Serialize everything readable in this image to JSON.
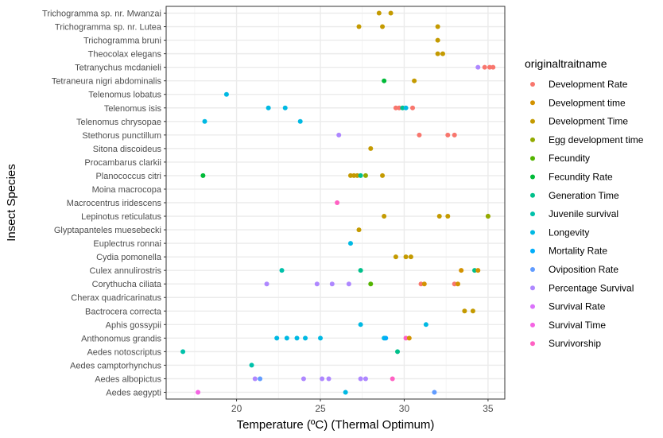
{
  "chart_data": {
    "type": "scatter",
    "xlabel": "Temperature (ºC) (Thermal Optimum)",
    "ylabel": "Insect Species",
    "xlim": [
      15.8,
      36.0
    ],
    "x_ticks": [
      20,
      25,
      30,
      35
    ],
    "grid": true,
    "legend_position": "right",
    "legend": {
      "title": "originaltraitname",
      "entries": [
        {
          "name": "Development Rate",
          "color": "#F8766D"
        },
        {
          "name": "Development time",
          "color": "#D39200"
        },
        {
          "name": "Development Time",
          "color": "#C49A00"
        },
        {
          "name": "Egg development time",
          "color": "#93AA00"
        },
        {
          "name": "Fecundity",
          "color": "#53B400"
        },
        {
          "name": "Fecundity Rate",
          "color": "#00BA38"
        },
        {
          "name": "Generation Time",
          "color": "#00C08B"
        },
        {
          "name": "Juvenile survival",
          "color": "#00C1AA"
        },
        {
          "name": "Longevity",
          "color": "#00B9E3"
        },
        {
          "name": "Mortality Rate",
          "color": "#00ADFA"
        },
        {
          "name": "Oviposition Rate",
          "color": "#619CFF"
        },
        {
          "name": "Percentage Survival",
          "color": "#AE87FF"
        },
        {
          "name": "Survival Rate",
          "color": "#DB72FB"
        },
        {
          "name": "Survival Time",
          "color": "#F564E3"
        },
        {
          "name": "Survivorship",
          "color": "#FF61C3"
        }
      ]
    },
    "categories": [
      "Aedes aegypti",
      "Aedes albopictus",
      "Aedes camptorhynchus",
      "Aedes notoscriptus",
      "Anthonomus grandis",
      "Aphis gossypii",
      "Bactrocera correcta",
      "Cherax quadricarinatus",
      "Corythucha ciliata",
      "Culex annulirostris",
      "Cydia pomonella",
      "Euplectrus ronnai",
      "Glyptapanteles muesebecki",
      "Lepinotus reticulatus",
      "Macrocentrus iridescens",
      "Moina macrocopa",
      "Planococcus citri",
      "Procambarus clarkii",
      "Sitona discoideus",
      "Stethorus punctillum",
      "Telenomus chrysopae",
      "Telenomus isis",
      "Telenomus lobatus",
      "Tetraneura nigri abdominalis",
      "Tetranychus mcdanieli",
      "Theocolax elegans",
      "Trichogramma bruni",
      "Trichogramma sp. nr. Lutea",
      "Trichogramma sp. nr. Mwanzai"
    ],
    "points": [
      {
        "species": "Aedes aegypti",
        "x": 17.7,
        "trait": "Survival Time"
      },
      {
        "species": "Aedes aegypti",
        "x": 26.5,
        "trait": "Longevity"
      },
      {
        "species": "Aedes aegypti",
        "x": 31.8,
        "trait": "Oviposition Rate"
      },
      {
        "species": "Aedes albopictus",
        "x": 21.1,
        "trait": "Percentage Survival"
      },
      {
        "species": "Aedes albopictus",
        "x": 21.4,
        "trait": "Oviposition Rate"
      },
      {
        "species": "Aedes albopictus",
        "x": 24.0,
        "trait": "Percentage Survival"
      },
      {
        "species": "Aedes albopictus",
        "x": 25.1,
        "trait": "Percentage Survival"
      },
      {
        "species": "Aedes albopictus",
        "x": 25.5,
        "trait": "Percentage Survival"
      },
      {
        "species": "Aedes albopictus",
        "x": 27.4,
        "trait": "Percentage Survival"
      },
      {
        "species": "Aedes albopictus",
        "x": 27.7,
        "trait": "Percentage Survival"
      },
      {
        "species": "Aedes albopictus",
        "x": 29.3,
        "trait": "Survivorship"
      },
      {
        "species": "Aedes camptorhynchus",
        "x": 20.9,
        "trait": "Juvenile survival"
      },
      {
        "species": "Aedes notoscriptus",
        "x": 16.8,
        "trait": "Juvenile survival"
      },
      {
        "species": "Aedes notoscriptus",
        "x": 29.6,
        "trait": "Generation Time"
      },
      {
        "species": "Anthonomus grandis",
        "x": 22.4,
        "trait": "Longevity"
      },
      {
        "species": "Anthonomus grandis",
        "x": 23.0,
        "trait": "Longevity"
      },
      {
        "species": "Anthonomus grandis",
        "x": 23.6,
        "trait": "Longevity"
      },
      {
        "species": "Anthonomus grandis",
        "x": 24.1,
        "trait": "Longevity"
      },
      {
        "species": "Anthonomus grandis",
        "x": 25.0,
        "trait": "Longevity"
      },
      {
        "species": "Anthonomus grandis",
        "x": 28.8,
        "trait": "Longevity"
      },
      {
        "species": "Anthonomus grandis",
        "x": 28.9,
        "trait": "Mortality Rate"
      },
      {
        "species": "Anthonomus grandis",
        "x": 30.1,
        "trait": "Survivorship"
      },
      {
        "species": "Anthonomus grandis",
        "x": 30.3,
        "trait": "Development time"
      },
      {
        "species": "Aphis gossypii",
        "x": 27.4,
        "trait": "Longevity"
      },
      {
        "species": "Aphis gossypii",
        "x": 31.3,
        "trait": "Longevity"
      },
      {
        "species": "Bactrocera correcta",
        "x": 33.6,
        "trait": "Development Time"
      },
      {
        "species": "Bactrocera correcta",
        "x": 34.1,
        "trait": "Development Time"
      },
      {
        "species": "Corythucha ciliata",
        "x": 21.8,
        "trait": "Percentage Survival"
      },
      {
        "species": "Corythucha ciliata",
        "x": 24.8,
        "trait": "Percentage Survival"
      },
      {
        "species": "Corythucha ciliata",
        "x": 25.7,
        "trait": "Percentage Survival"
      },
      {
        "species": "Corythucha ciliata",
        "x": 26.7,
        "trait": "Percentage Survival"
      },
      {
        "species": "Corythucha ciliata",
        "x": 28.0,
        "trait": "Fecundity"
      },
      {
        "species": "Corythucha ciliata",
        "x": 31.0,
        "trait": "Development Rate"
      },
      {
        "species": "Corythucha ciliata",
        "x": 31.2,
        "trait": "Development time"
      },
      {
        "species": "Corythucha ciliata",
        "x": 33.0,
        "trait": "Development Rate"
      },
      {
        "species": "Corythucha ciliata",
        "x": 33.2,
        "trait": "Development time"
      },
      {
        "species": "Culex annulirostris",
        "x": 22.7,
        "trait": "Juvenile survival"
      },
      {
        "species": "Culex annulirostris",
        "x": 27.4,
        "trait": "Generation Time"
      },
      {
        "species": "Culex annulirostris",
        "x": 33.4,
        "trait": "Development time"
      },
      {
        "species": "Culex annulirostris",
        "x": 34.2,
        "trait": "Generation Time"
      },
      {
        "species": "Culex annulirostris",
        "x": 34.4,
        "trait": "Development time"
      },
      {
        "species": "Cydia pomonella",
        "x": 29.5,
        "trait": "Development Time"
      },
      {
        "species": "Cydia pomonella",
        "x": 30.1,
        "trait": "Development Time"
      },
      {
        "species": "Cydia pomonella",
        "x": 30.4,
        "trait": "Development Time"
      },
      {
        "species": "Euplectrus ronnai",
        "x": 26.8,
        "trait": "Longevity"
      },
      {
        "species": "Glyptapanteles muesebecki",
        "x": 27.3,
        "trait": "Development Time"
      },
      {
        "species": "Lepinotus reticulatus",
        "x": 28.8,
        "trait": "Development Time"
      },
      {
        "species": "Lepinotus reticulatus",
        "x": 32.1,
        "trait": "Development Time"
      },
      {
        "species": "Lepinotus reticulatus",
        "x": 32.6,
        "trait": "Development Time"
      },
      {
        "species": "Lepinotus reticulatus",
        "x": 35.0,
        "trait": "Development Time"
      },
      {
        "species": "Lepinotus reticulatus",
        "x": 35.0,
        "trait": "Egg development time"
      },
      {
        "species": "Macrocentrus iridescens",
        "x": 26.0,
        "trait": "Survivorship"
      },
      {
        "species": "Planococcus citri",
        "x": 18.0,
        "trait": "Fecundity Rate"
      },
      {
        "species": "Planococcus citri",
        "x": 26.8,
        "trait": "Development Time"
      },
      {
        "species": "Planococcus citri",
        "x": 27.0,
        "trait": "Development Time"
      },
      {
        "species": "Planococcus citri",
        "x": 27.2,
        "trait": "Development Time"
      },
      {
        "species": "Planococcus citri",
        "x": 27.4,
        "trait": "Generation Time"
      },
      {
        "species": "Planococcus citri",
        "x": 27.7,
        "trait": "Egg development time"
      },
      {
        "species": "Planococcus citri",
        "x": 28.7,
        "trait": "Development Time"
      },
      {
        "species": "Sitona discoideus",
        "x": 28.0,
        "trait": "Development Time"
      },
      {
        "species": "Stethorus punctillum",
        "x": 26.1,
        "trait": "Percentage Survival"
      },
      {
        "species": "Stethorus punctillum",
        "x": 30.9,
        "trait": "Development Rate"
      },
      {
        "species": "Stethorus punctillum",
        "x": 32.6,
        "trait": "Development Rate"
      },
      {
        "species": "Stethorus punctillum",
        "x": 33.0,
        "trait": "Development Rate"
      },
      {
        "species": "Telenomus chrysopae",
        "x": 18.1,
        "trait": "Longevity"
      },
      {
        "species": "Telenomus chrysopae",
        "x": 23.8,
        "trait": "Longevity"
      },
      {
        "species": "Telenomus isis",
        "x": 21.9,
        "trait": "Longevity"
      },
      {
        "species": "Telenomus isis",
        "x": 22.9,
        "trait": "Longevity"
      },
      {
        "species": "Telenomus isis",
        "x": 29.5,
        "trait": "Development Rate"
      },
      {
        "species": "Telenomus isis",
        "x": 29.7,
        "trait": "Development Rate"
      },
      {
        "species": "Telenomus isis",
        "x": 29.9,
        "trait": "Generation Time"
      },
      {
        "species": "Telenomus isis",
        "x": 30.1,
        "trait": "Longevity"
      },
      {
        "species": "Telenomus isis",
        "x": 30.5,
        "trait": "Development Rate"
      },
      {
        "species": "Telenomus lobatus",
        "x": 19.4,
        "trait": "Longevity"
      },
      {
        "species": "Tetraneura nigri abdominalis",
        "x": 28.8,
        "trait": "Fecundity Rate"
      },
      {
        "species": "Tetraneura nigri abdominalis",
        "x": 30.6,
        "trait": "Development Time"
      },
      {
        "species": "Tetranychus mcdanieli",
        "x": 34.4,
        "trait": "Percentage Survival"
      },
      {
        "species": "Tetranychus mcdanieli",
        "x": 34.8,
        "trait": "Development Rate"
      },
      {
        "species": "Tetranychus mcdanieli",
        "x": 35.1,
        "trait": "Development Rate"
      },
      {
        "species": "Tetranychus mcdanieli",
        "x": 35.3,
        "trait": "Development Rate"
      },
      {
        "species": "Theocolax elegans",
        "x": 32.0,
        "trait": "Development Time"
      },
      {
        "species": "Theocolax elegans",
        "x": 32.3,
        "trait": "Development Time"
      },
      {
        "species": "Trichogramma bruni",
        "x": 32.0,
        "trait": "Development Time"
      },
      {
        "species": "Trichogramma sp. nr. Lutea",
        "x": 27.3,
        "trait": "Development Time"
      },
      {
        "species": "Trichogramma sp. nr. Lutea",
        "x": 28.7,
        "trait": "Development Time"
      },
      {
        "species": "Trichogramma sp. nr. Lutea",
        "x": 32.0,
        "trait": "Development Time"
      },
      {
        "species": "Trichogramma sp. nr. Mwanzai",
        "x": 28.5,
        "trait": "Development Time"
      },
      {
        "species": "Trichogramma sp. nr. Mwanzai",
        "x": 29.2,
        "trait": "Development Time"
      }
    ]
  }
}
